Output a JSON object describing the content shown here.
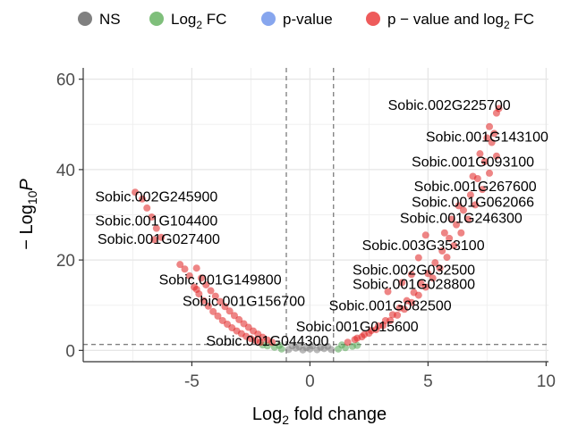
{
  "chart_data": {
    "type": "scatter",
    "title": "",
    "xlabel_main": "Log",
    "xlabel_sub": "2",
    "xlabel_rest": " fold change",
    "ylabel_prefix": "− Log",
    "ylabel_sub": "10",
    "ylabel_italic": "P",
    "xlim": [
      -9.6,
      10.1
    ],
    "ylim": [
      -2.5,
      62.5
    ],
    "x_ticks": [
      -5,
      0,
      5,
      10
    ],
    "y_ticks": [
      0,
      20,
      40,
      60
    ],
    "x_tick_labels": [
      "-5",
      "0",
      "5",
      "10"
    ],
    "y_tick_labels": [
      "0",
      "20",
      "40",
      "60"
    ],
    "fc_cutoff": 1,
    "p_cutoff_log10": 1.3,
    "grid": true,
    "legend_position": "top",
    "legend": [
      {
        "label_main": "NS",
        "label_sub": "",
        "label_rest": "",
        "color": "#808080"
      },
      {
        "label_main": "Log",
        "label_sub": "2",
        "label_rest": " FC",
        "color": "#7fbf7b"
      },
      {
        "label_main": "p-value",
        "label_sub": "",
        "label_rest": "",
        "color": "#87a6ee"
      },
      {
        "label_main": "p − value and log",
        "label_sub": "2",
        "label_rest": " FC",
        "color": "#ee5b5b"
      }
    ],
    "series_colors": {
      "ns": "#808080",
      "fc": "#53a653",
      "both": "#e02020"
    },
    "ns_points": [
      [
        -0.9,
        0.2
      ],
      [
        -0.6,
        0.5
      ],
      [
        -0.3,
        0.1
      ],
      [
        0,
        0.3
      ],
      [
        0.3,
        0.15
      ],
      [
        0.6,
        0.4
      ],
      [
        0.9,
        0.2
      ],
      [
        -0.45,
        0.8
      ],
      [
        0.45,
        0.7
      ],
      [
        0.1,
        1.0
      ],
      [
        -0.15,
        0.6
      ],
      [
        0.75,
        0.9
      ],
      [
        -0.75,
        1.0
      ]
    ],
    "fc_points": [
      [
        -1.2,
        0.3
      ],
      [
        -1.5,
        0.7
      ],
      [
        -1.8,
        1.0
      ],
      [
        1.2,
        0.3
      ],
      [
        1.5,
        0.6
      ],
      [
        1.8,
        0.9
      ],
      [
        2.0,
        1.1
      ],
      [
        -2.0,
        1.2
      ],
      [
        -1.3,
        1.1
      ],
      [
        1.35,
        1.2
      ]
    ],
    "both_points": [
      [
        -7.4,
        35
      ],
      [
        -7.1,
        33.5
      ],
      [
        -6.9,
        31.5
      ],
      [
        -6.7,
        29.5
      ],
      [
        -6.5,
        27
      ],
      [
        -6.3,
        25
      ],
      [
        -6.6,
        24.5
      ],
      [
        -5.3,
        18
      ],
      [
        -5.1,
        16.5
      ],
      [
        -4.9,
        14
      ],
      [
        -4.7,
        12.5
      ],
      [
        -4.5,
        11
      ],
      [
        -4.3,
        9.8
      ],
      [
        -4.1,
        8.6
      ],
      [
        -3.9,
        7.6
      ],
      [
        -3.7,
        6.6
      ],
      [
        -3.5,
        5.8
      ],
      [
        -3.3,
        5
      ],
      [
        -3.1,
        4.3
      ],
      [
        -2.9,
        3.7
      ],
      [
        -2.7,
        3.1
      ],
      [
        -2.5,
        2.6
      ],
      [
        -2.3,
        2.2
      ],
      [
        -2.1,
        1.8
      ],
      [
        -4.8,
        18.2
      ],
      [
        -4.6,
        16
      ],
      [
        -4.4,
        14.5
      ],
      [
        -4.2,
        13.2
      ],
      [
        -4.0,
        12
      ],
      [
        -3.8,
        10.8
      ],
      [
        -3.6,
        9.7
      ],
      [
        -3.4,
        8.7
      ],
      [
        -3.2,
        7.7
      ],
      [
        -3.0,
        6.8
      ],
      [
        -2.8,
        5.9
      ],
      [
        -2.6,
        5.1
      ],
      [
        -2.4,
        4.3
      ],
      [
        -2.2,
        3.6
      ],
      [
        -2.0,
        2.9
      ],
      [
        -1.8,
        2.3
      ],
      [
        -1.6,
        1.8
      ],
      [
        -4.8,
        13.5
      ],
      [
        -5.5,
        19
      ],
      [
        1.6,
        1.8
      ],
      [
        1.9,
        2.4
      ],
      [
        2.2,
        3.0
      ],
      [
        2.5,
        3.8
      ],
      [
        2.8,
        4.6
      ],
      [
        3.1,
        5.5
      ],
      [
        3.4,
        6.6
      ],
      [
        3.7,
        7.8
      ],
      [
        4.0,
        9.1
      ],
      [
        4.3,
        10.6
      ],
      [
        4.6,
        12.2
      ],
      [
        4.9,
        14
      ],
      [
        5.2,
        16
      ],
      [
        5.5,
        18.2
      ],
      [
        5.8,
        20.6
      ],
      [
        6.1,
        23.2
      ],
      [
        6.4,
        26
      ],
      [
        6.7,
        29
      ],
      [
        7.0,
        32.2
      ],
      [
        7.3,
        35.6
      ],
      [
        7.6,
        39.2
      ],
      [
        7.9,
        43
      ],
      [
        2.0,
        2.7
      ],
      [
        2.3,
        3.5
      ],
      [
        2.6,
        4.4
      ],
      [
        2.9,
        5.4
      ],
      [
        3.2,
        6.6
      ],
      [
        3.5,
        7.9
      ],
      [
        3.8,
        9.4
      ],
      [
        4.1,
        11
      ],
      [
        4.4,
        12.8
      ],
      [
        4.7,
        14.8
      ],
      [
        5.0,
        17
      ],
      [
        5.3,
        19.4
      ],
      [
        5.6,
        22
      ],
      [
        5.9,
        24.8
      ],
      [
        6.2,
        27.8
      ],
      [
        6.5,
        31
      ],
      [
        6.8,
        34.4
      ],
      [
        7.1,
        38
      ],
      [
        7.4,
        41.8
      ],
      [
        7.7,
        46
      ],
      [
        7.6,
        49.5
      ],
      [
        7.9,
        52.5
      ],
      [
        8.0,
        53.5
      ],
      [
        7.8,
        48
      ],
      [
        5.7,
        26
      ],
      [
        6.0,
        29
      ],
      [
        6.3,
        32
      ],
      [
        6.9,
        38.5
      ],
      [
        7.2,
        43.5
      ],
      [
        7.5,
        47
      ],
      [
        4.9,
        25.5
      ],
      [
        4.6,
        20.5
      ],
      [
        3.3,
        13
      ],
      [
        3.9,
        15
      ],
      [
        4.3,
        16.8
      ]
    ],
    "gene_labels": [
      {
        "text": "Sobic.002G225700",
        "x": 5.9,
        "y": 54.2
      },
      {
        "text": "Sobic.001G143100",
        "x": 7.5,
        "y": 47.2
      },
      {
        "text": "Sobic.001G093100",
        "x": 6.9,
        "y": 41.7
      },
      {
        "text": "Sobic.001G267600",
        "x": 7.0,
        "y": 36.2
      },
      {
        "text": "Sobic.001G062066",
        "x": 6.9,
        "y": 32.8
      },
      {
        "text": "Sobic.001G246300",
        "x": 6.4,
        "y": 29.2
      },
      {
        "text": "Sobic.003G353100",
        "x": 4.8,
        "y": 23.2
      },
      {
        "text": "Sobic.002G032500",
        "x": 4.4,
        "y": 17.8
      },
      {
        "text": "Sobic.001G028800",
        "x": 4.4,
        "y": 14.6
      },
      {
        "text": "Sobic.001G082500",
        "x": 3.4,
        "y": 9.8
      },
      {
        "text": "Sobic.001G015600",
        "x": 2.0,
        "y": 5.2
      },
      {
        "text": "Sobic.001G044300",
        "x": -1.8,
        "y": 2.0
      },
      {
        "text": "Sobic.001G149800",
        "x": -3.8,
        "y": 15.6
      },
      {
        "text": "Sobic.001G156700",
        "x": -2.8,
        "y": 10.8
      },
      {
        "text": "Sobic.002G245900",
        "x": -6.5,
        "y": 34.0
      },
      {
        "text": "Sobic.001G104400",
        "x": -6.5,
        "y": 28.6
      },
      {
        "text": "Sobic.001G027400",
        "x": -6.4,
        "y": 24.6
      }
    ]
  }
}
